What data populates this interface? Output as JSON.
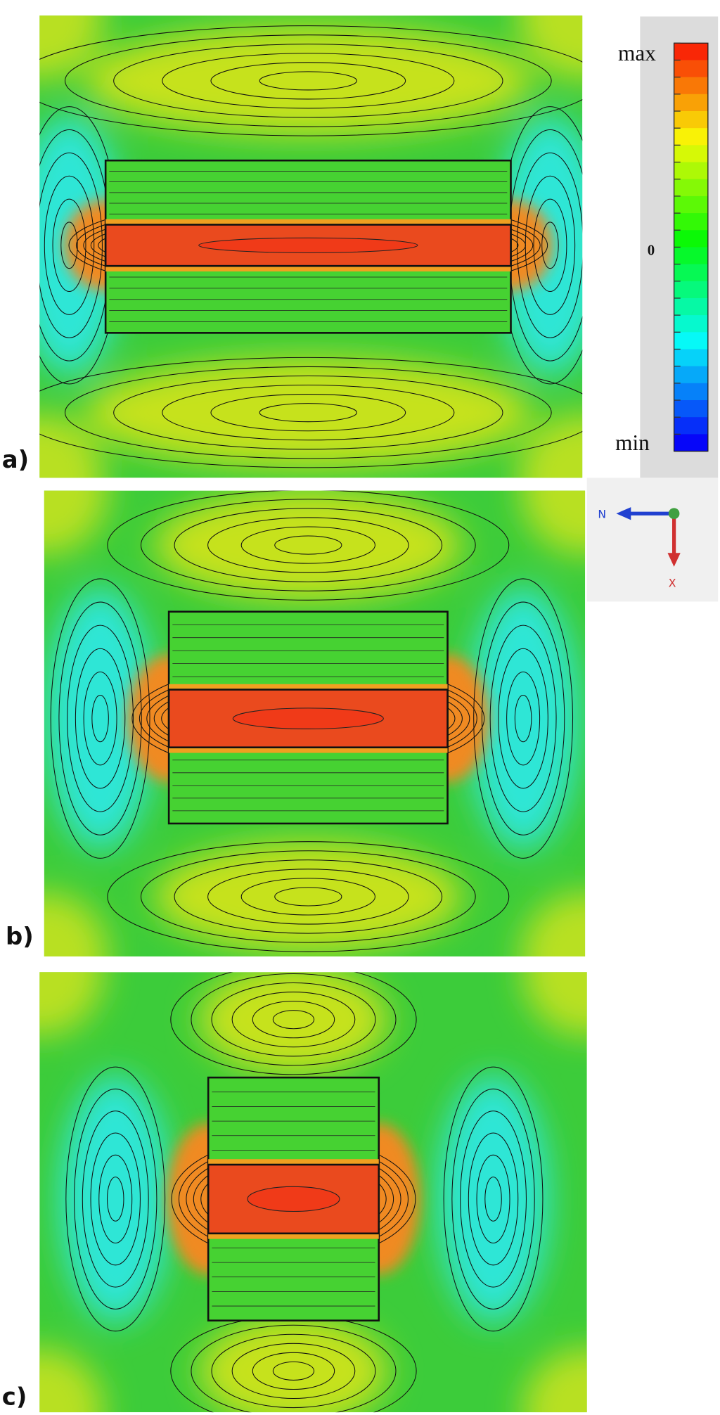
{
  "panels": [
    {
      "label": "a)"
    },
    {
      "label": "b)"
    },
    {
      "label": "c)"
    }
  ],
  "colorbar": {
    "max": "max",
    "zero": "0",
    "min": "min"
  },
  "orientation": {
    "n": "N",
    "x": "X"
  }
}
